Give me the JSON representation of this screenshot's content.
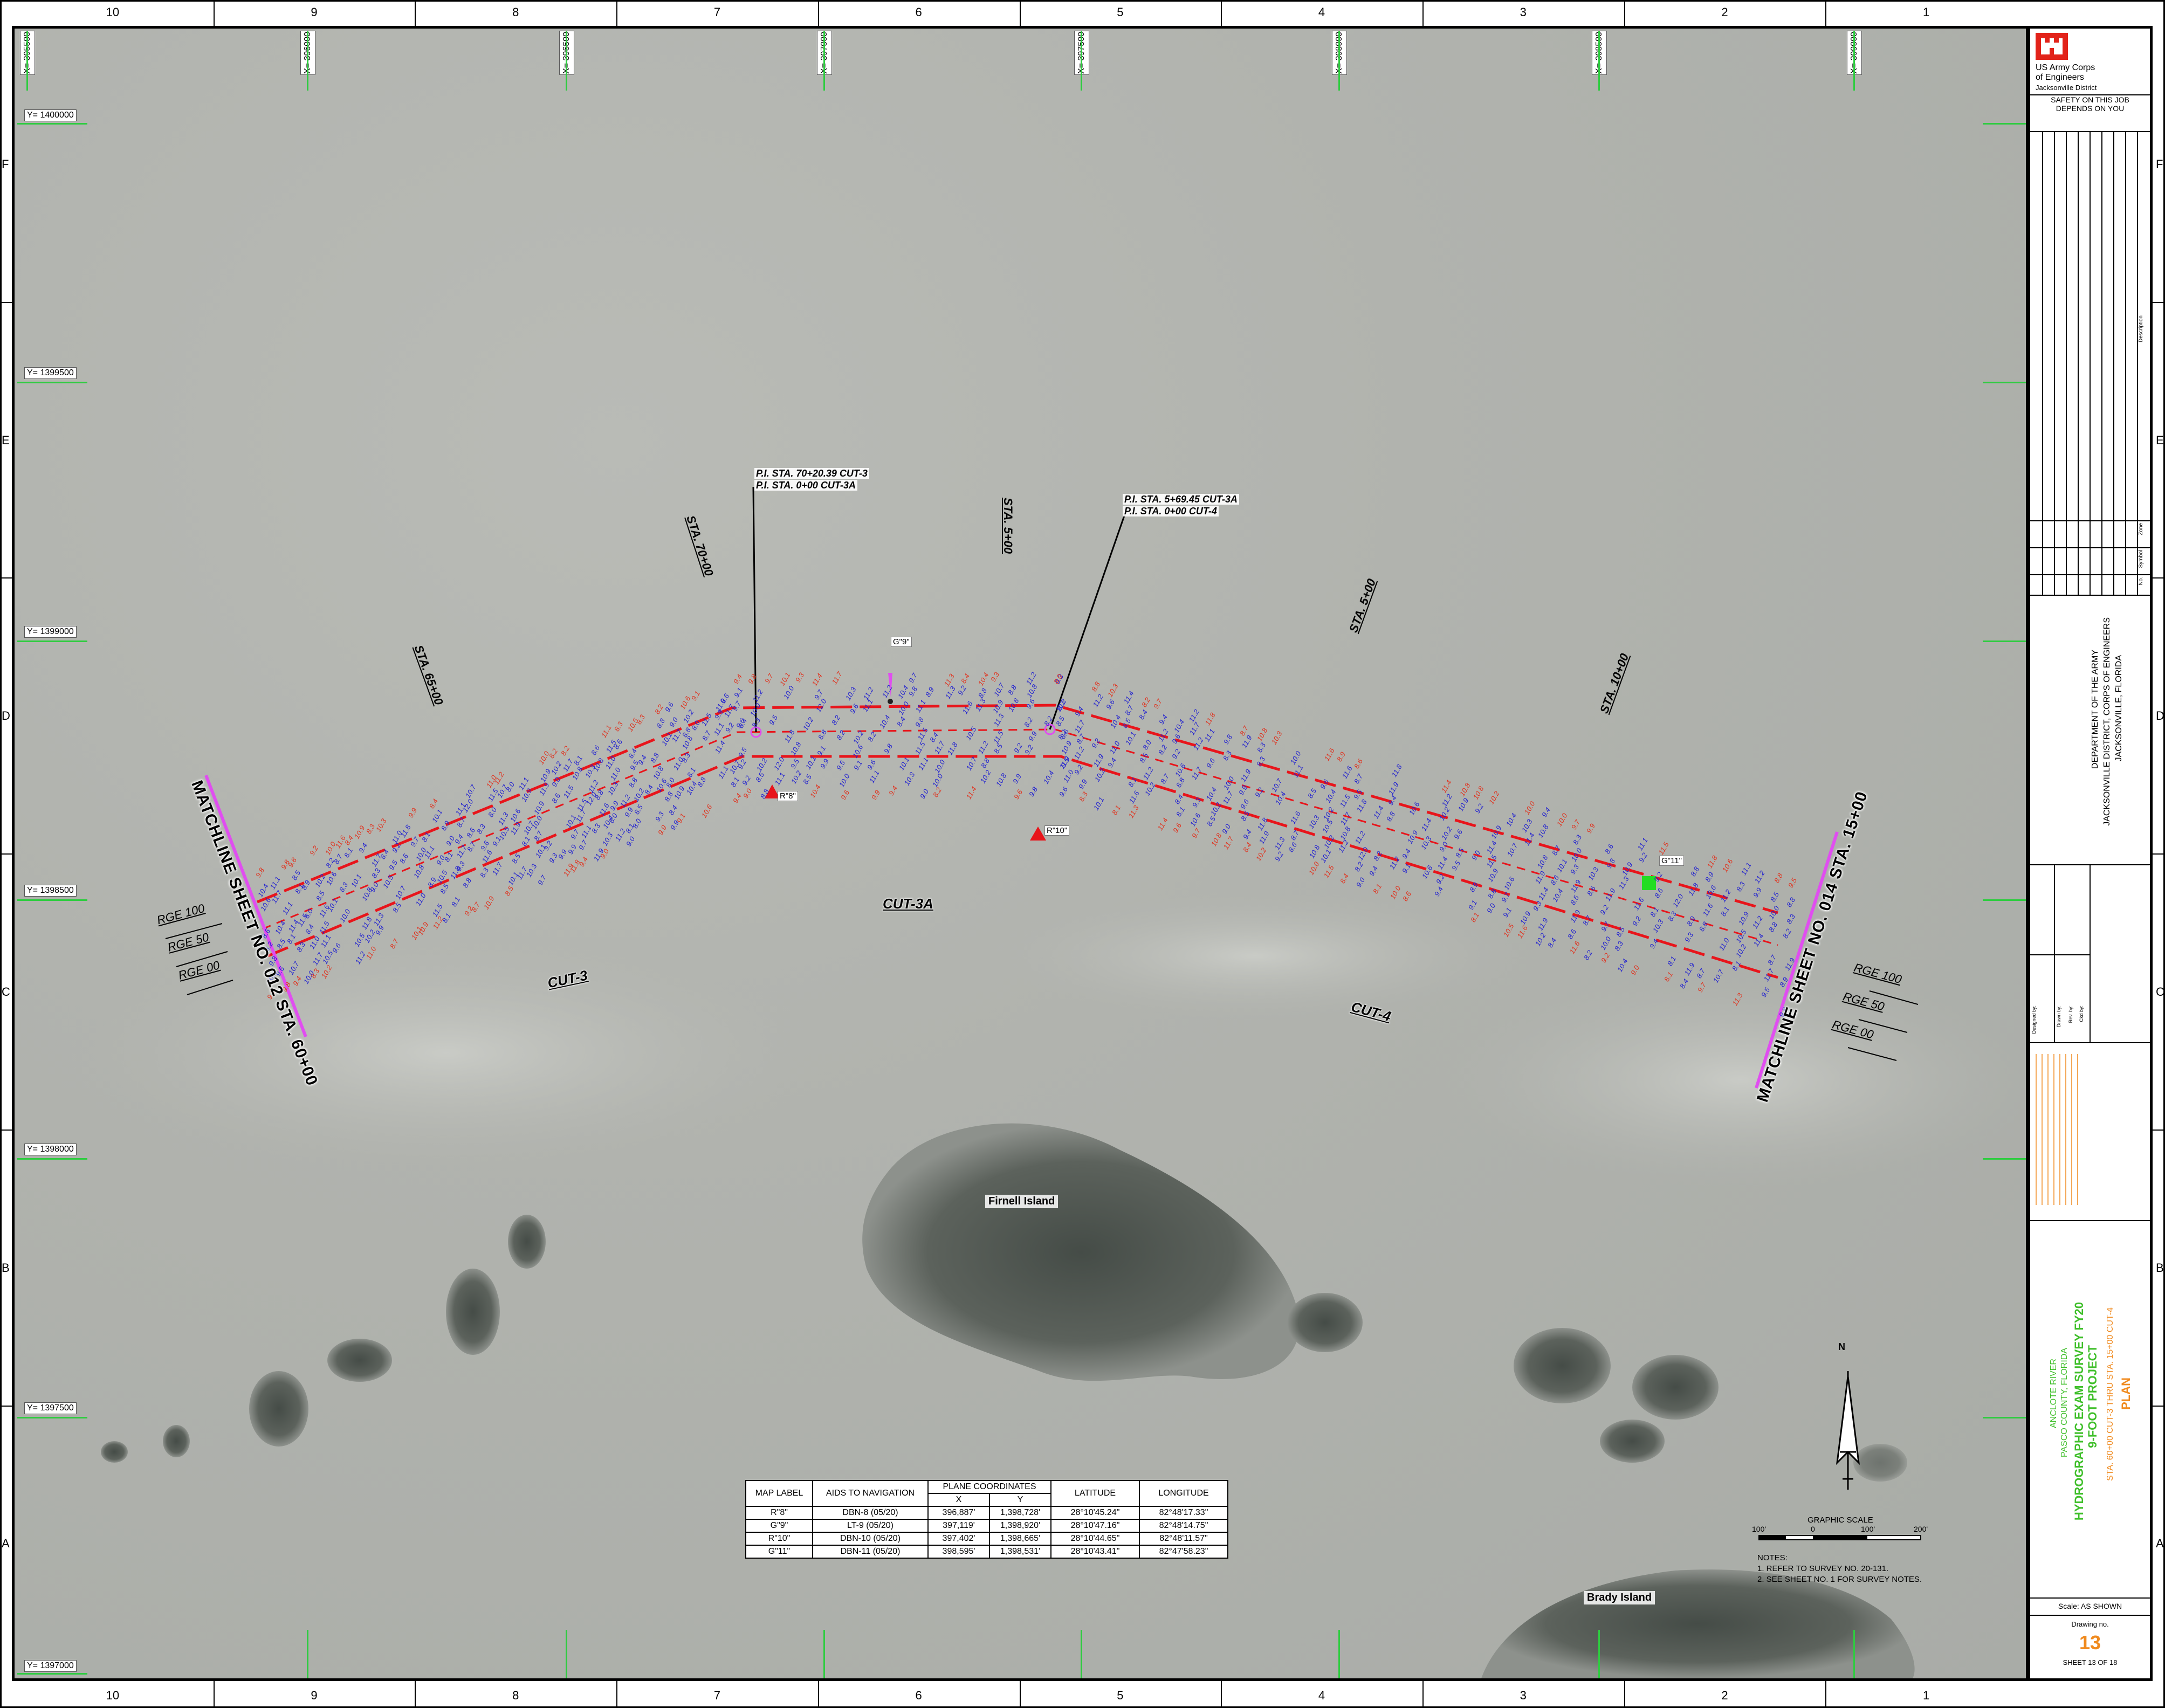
{
  "sheet_border": {
    "zone_columns": [
      "10",
      "9",
      "8",
      "7",
      "6",
      "5",
      "4",
      "3",
      "2",
      "1"
    ],
    "zone_rows": [
      "F",
      "E",
      "D",
      "C",
      "B",
      "A"
    ]
  },
  "grid": {
    "x_labels": [
      "X= 395500",
      "X= 396000",
      "X= 396500",
      "X= 397000",
      "X= 397500",
      "X= 398000",
      "X= 398500",
      "X= 399000"
    ],
    "y_labels": [
      "Y= 1400000",
      "Y= 1399500",
      "Y= 1399000",
      "Y= 1398500",
      "Y= 1398000",
      "Y= 1397500",
      "Y= 1397000"
    ]
  },
  "stations": {
    "sta_6500": "STA. 65+00",
    "sta_7000": "STA. 70+00",
    "sta_500": "STA. 5+00",
    "sta_1000_a": "STA. 5+00",
    "sta_1000_b": "STA. 10+00"
  },
  "pi_labels": {
    "pi1_line1": "P.I. STA. 70+20.39 CUT-3",
    "pi1_line2": "P.I. STA. 0+00 CUT-3A",
    "pi2_line1": "P.I. STA. 5+69.45 CUT-3A",
    "pi2_line2": "P.I. STA. 0+00 CUT-4"
  },
  "matchlines": {
    "left": "MATCHLINE SHEET NO. 012 STA. 60+00",
    "right": "MATCHLINE SHEET NO. 014 STA. 15+00"
  },
  "range_labels": {
    "left": [
      "RGE 100",
      "RGE 50",
      "RGE 00"
    ],
    "right": [
      "RGE 100",
      "RGE 50",
      "RGE 00"
    ]
  },
  "cut_labels": {
    "cut3": "CUT-3",
    "cut3a": "CUT-3A",
    "cut4": "CUT-4"
  },
  "islands": {
    "firnell": "Firnell Island",
    "brady": "Brady Island"
  },
  "aids_markers": {
    "r8": "R\"8\"",
    "g9": "G\"9\"",
    "r10": "R\"10\"",
    "g11": "G\"11\""
  },
  "aids_table": {
    "header_map_label": "MAP LABEL",
    "header_aids": "AIDS TO NAVIGATION",
    "header_plane": "PLANE COORDINATES",
    "header_x": "X",
    "header_y": "Y",
    "header_lat": "LATITUDE",
    "header_lon": "LONGITUDE",
    "rows": [
      {
        "label": "R\"8\"",
        "aid": "DBN-8 (05/20)",
        "x": "396,887'",
        "y": "1,398,728'",
        "lat": "28°10'45.24\"",
        "lon": "82°48'17.33\""
      },
      {
        "label": "G\"9\"",
        "aid": "LT-9 (05/20)",
        "x": "397,119'",
        "y": "1,398,920'",
        "lat": "28°10'47.16\"",
        "lon": "82°48'14.75\""
      },
      {
        "label": "R\"10\"",
        "aid": "DBN-10 (05/20)",
        "x": "397,402'",
        "y": "1,398,665'",
        "lat": "28°10'44.65\"",
        "lon": "82°48'11.57\""
      },
      {
        "label": "G\"11\"",
        "aid": "DBN-11 (05/20)",
        "x": "398,595'",
        "y": "1,398,531'",
        "lat": "28°10'43.41\"",
        "lon": "82°47'58.23\""
      }
    ]
  },
  "scale": {
    "title": "GRAPHIC SCALE",
    "ticks": [
      "100'",
      "0",
      "100'",
      "200'"
    ],
    "north": "N"
  },
  "notes": {
    "title": "NOTES:",
    "lines": [
      "1. REFER TO SURVEY NO. 20-131.",
      "2. SEE SHEET NO. 1 FOR SURVEY NOTES."
    ]
  },
  "title_block": {
    "agency_line1": "US Army Corps",
    "agency_line2": "of Engineers",
    "agency_line3": "Jacksonville District",
    "safety_line1": "SAFETY ON THIS JOB",
    "safety_line2": "DEPENDS ON YOU",
    "rev_description": "Description",
    "rev_zone": "Zone",
    "rev_symbol": "Symbol",
    "rev_no": "No.",
    "dept_line1": "DEPARTMENT OF THE ARMY",
    "dept_line2": "JACKSONVILLE DISTRICT, CORPS OF ENGINEERS",
    "dept_line3": "JACKSONVILLE, FLORIDA",
    "designed_by": "Designed by:",
    "drawn_by": "Drawn by:",
    "reviewed_by": "Rev. by:",
    "ckd_by": "Ckd by:",
    "project_title_1": "ANCLOTE RIVER",
    "project_title_2": "PASCO COUNTY, FLORIDA",
    "project_title_3": "HYDROGRAPHIC EXAM SURVEY FY20",
    "project_title_4": "9-FOOT PROJECT",
    "project_title_5": "STA. 60+00 CUT-3 THRU STA. 15+00 CUT-4",
    "project_title_6": "PLAN",
    "scale": "Scale:  AS SHOWN",
    "drawing_no_label": "Drawing no.",
    "drawing_no": "13",
    "sheet_text": "SHEET  13  OF  18"
  },
  "colors": {
    "channel_line": "#e8151b",
    "sounding_blue": "#2222d0",
    "sounding_red": "#e0331f",
    "usace_red": "#e2231a",
    "green_text": "#3fbf2a",
    "orange_text": "#f08a1e"
  }
}
